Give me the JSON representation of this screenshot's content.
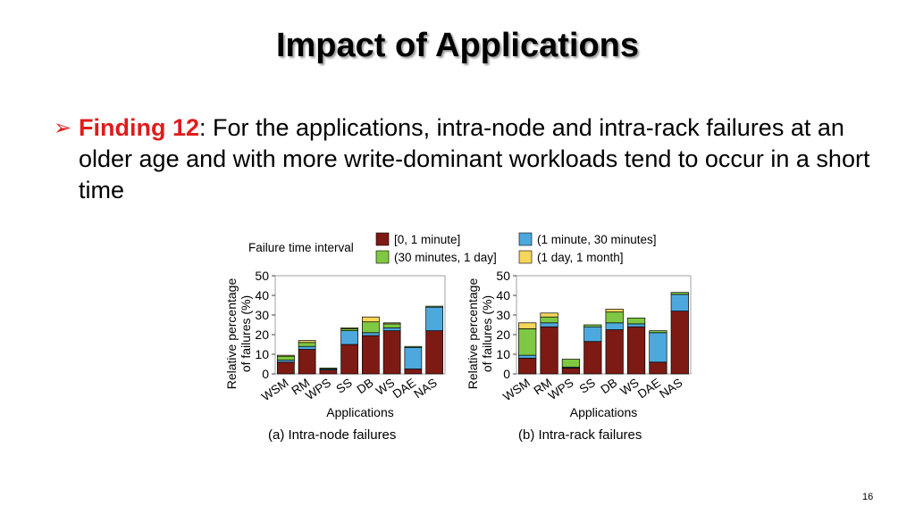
{
  "slide": {
    "title": "Impact of Applications",
    "finding_label": "Finding 12",
    "finding_text": ": For the applications, intra-node and intra-rack failures at an older age and with more write-dominant workloads tend to occur in a short time",
    "page_number": "16"
  },
  "legend": {
    "title": "Failure time interval",
    "entries": [
      {
        "label": "[0, 1 minute]",
        "color": "#7d1a14"
      },
      {
        "label": "(1 minute, 30 minutes]",
        "color": "#4da9dd"
      },
      {
        "label": "(30 minutes, 1 day]",
        "color": "#7fc843"
      },
      {
        "label": "(1 day, 1 month]",
        "color": "#f6d65a"
      }
    ]
  },
  "chart_data": [
    {
      "type": "bar",
      "stacked": true,
      "title": "(a) Intra-node failures",
      "xlabel": "Applications",
      "ylabel": "Relative percentage of failures (%)",
      "ylim": [
        0,
        50
      ],
      "yticks": [
        0,
        10,
        20,
        30,
        40,
        50
      ],
      "categories": [
        "WSM",
        "RM",
        "WPS",
        "SS",
        "DB",
        "WS",
        "DAE",
        "NAS"
      ],
      "series": [
        {
          "name": "[0, 1 minute]",
          "values": [
            6,
            12.5,
            2,
            15,
            19.5,
            22,
            2.5,
            22
          ]
        },
        {
          "name": "(1 minute, 30 minutes]",
          "values": [
            1,
            1.5,
            0.5,
            7,
            1.5,
            1.5,
            11,
            12
          ]
        },
        {
          "name": "(30 minutes, 1 day]",
          "values": [
            2,
            2,
            0.5,
            1,
            5.5,
            2,
            0.5,
            0.5
          ]
        },
        {
          "name": "(1 day, 1 month]",
          "values": [
            0.5,
            1,
            0,
            0.5,
            2.5,
            0.5,
            0,
            0
          ]
        }
      ]
    },
    {
      "type": "bar",
      "stacked": true,
      "title": "(b) Intra-rack failures",
      "xlabel": "Applications",
      "ylabel": "Relative percentage of failures (%)",
      "ylim": [
        0,
        50
      ],
      "yticks": [
        0,
        10,
        20,
        30,
        40,
        50
      ],
      "categories": [
        "WSM",
        "RM",
        "WPS",
        "SS",
        "DB",
        "WS",
        "DAE",
        "NAS"
      ],
      "series": [
        {
          "name": "[0, 1 minute]",
          "values": [
            8,
            24,
            3,
            16.5,
            22.5,
            24,
            6,
            32
          ]
        },
        {
          "name": "(1 minute, 30 minutes]",
          "values": [
            1.5,
            2,
            0.5,
            7.5,
            3.5,
            1.5,
            15,
            8.5
          ]
        },
        {
          "name": "(30 minutes, 1 day]",
          "values": [
            13.5,
            3,
            4,
            1,
            5.5,
            3,
            1,
            1
          ]
        },
        {
          "name": "(1 day, 1 month]",
          "values": [
            3,
            2,
            0,
            0,
            1.5,
            0,
            0,
            0
          ]
        }
      ]
    }
  ]
}
